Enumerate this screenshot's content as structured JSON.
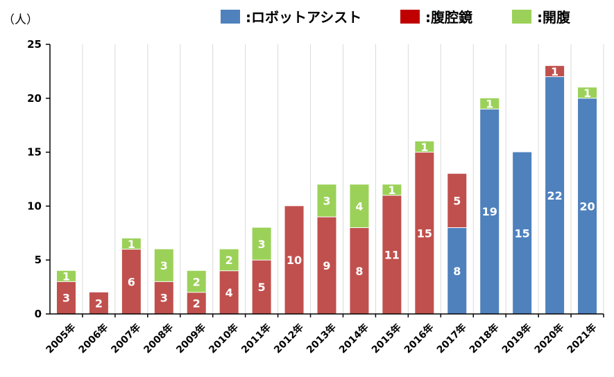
{
  "chart_data": {
    "type": "bar",
    "stacked": true,
    "unit_label": "（人）",
    "categories": [
      "2005年",
      "2006年",
      "2007年",
      "2008年",
      "2009年",
      "2010年",
      "2011年",
      "2012年",
      "2013年",
      "2014年",
      "2015年",
      "2016年",
      "2017年",
      "2018年",
      "2019年",
      "2020年",
      "2021年"
    ],
    "series": [
      {
        "name": ":ロボットアシスト",
        "color": "#4f81bd",
        "values": [
          0,
          0,
          0,
          0,
          0,
          0,
          0,
          0,
          0,
          0,
          0,
          0,
          8,
          19,
          15,
          22,
          20
        ]
      },
      {
        "name": ":腹腔鏡",
        "color": "#c0504d",
        "values": [
          3,
          2,
          6,
          3,
          2,
          4,
          5,
          10,
          9,
          8,
          11,
          15,
          5,
          0,
          0,
          1,
          0
        ]
      },
      {
        "name": ":開腹",
        "color": "#9bd158",
        "values": [
          1,
          0,
          1,
          3,
          2,
          2,
          3,
          0,
          3,
          4,
          1,
          1,
          0,
          1,
          0,
          0,
          1
        ]
      }
    ],
    "y_ticks": [
      "0",
      "5",
      "10",
      "15",
      "20",
      "25"
    ],
    "ylim": [
      0,
      25
    ],
    "grid": "vertical",
    "legend_position": "top-right",
    "colors": {
      "legend_red": "#c00000"
    }
  }
}
